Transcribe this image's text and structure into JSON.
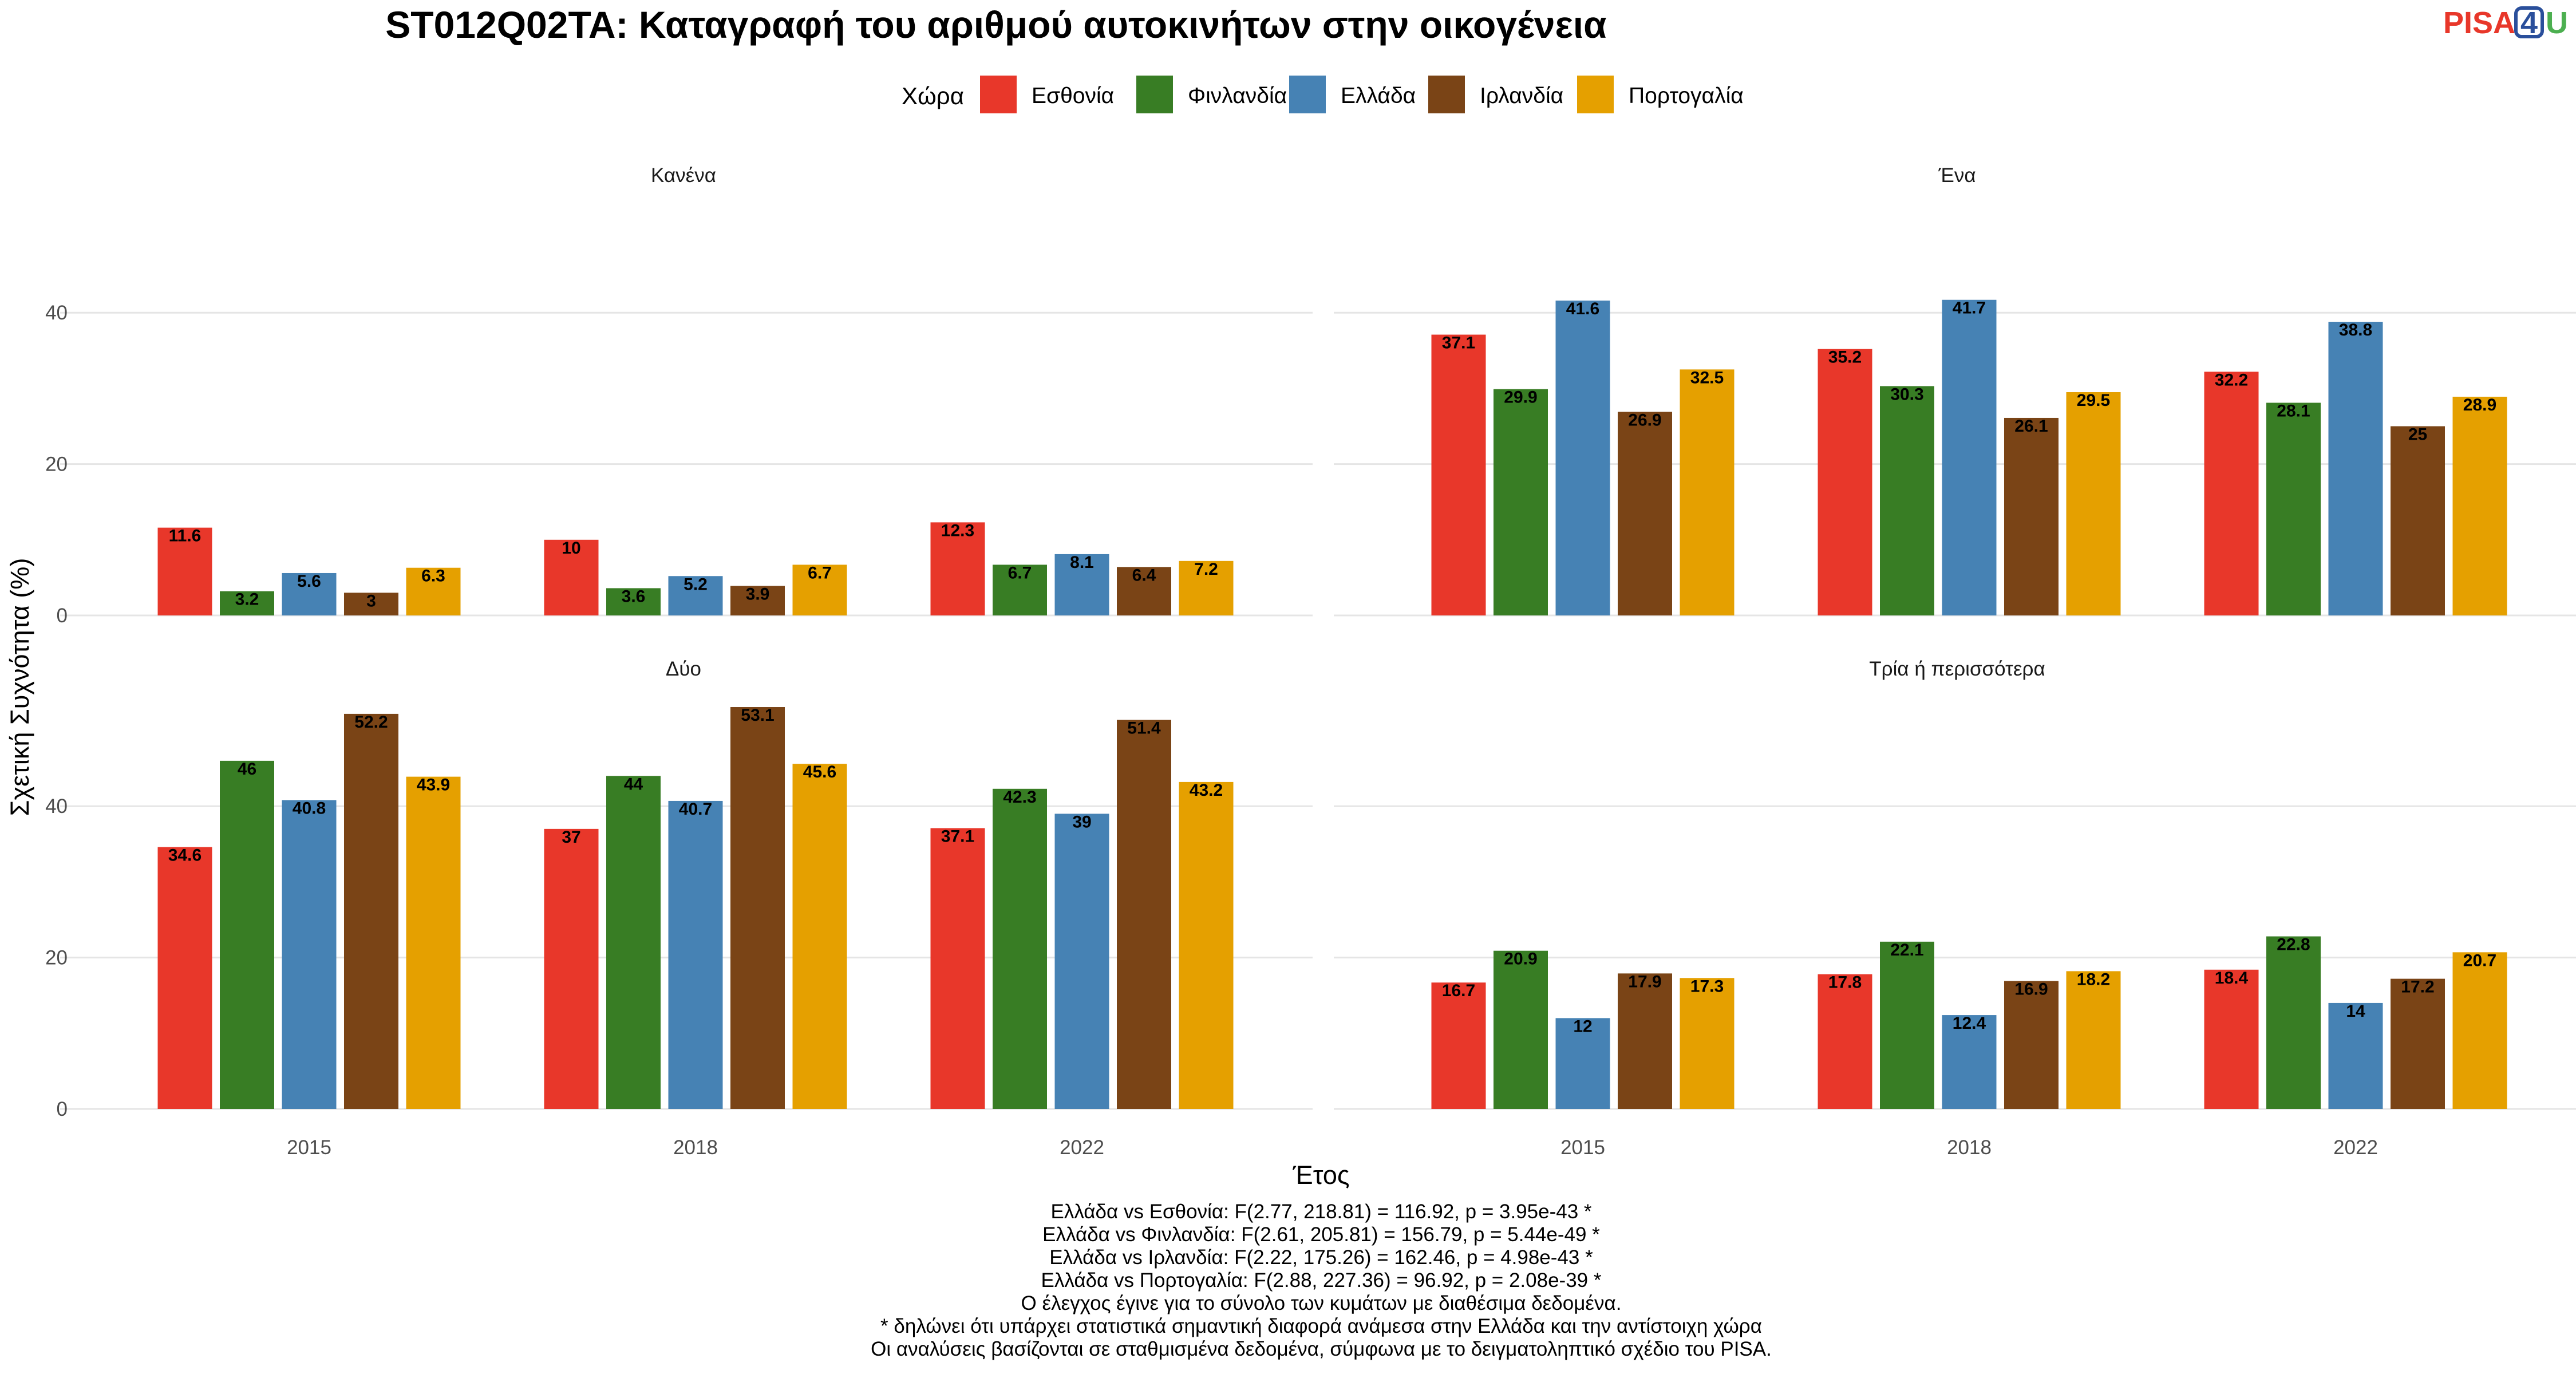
{
  "header": {
    "title": "ST012Q02TA: Καταγραφή του αριθμού αυτοκινήτων στην οικογένεια",
    "logo_left": "PISA",
    "logo_mid": "4",
    "logo_right": "U"
  },
  "legend": {
    "title": "Χώρα",
    "items": [
      {
        "label": "Εσθονία",
        "color": "#E8372A"
      },
      {
        "label": "Φινλανδία",
        "color": "#387D24"
      },
      {
        "label": "Ελλάδα",
        "color": "#4682B4"
      },
      {
        "label": "Ιρλανδία",
        "color": "#7A4416"
      },
      {
        "label": "Πορτογαλία",
        "color": "#E5A000"
      }
    ]
  },
  "colors": {
    "grid": "#e5e5e5",
    "logo_red": "#E8372A",
    "logo_blue": "#2a4f9b",
    "logo_green": "#4caf50"
  },
  "chart_data": {
    "type": "bar",
    "xlabel": "Έτος",
    "ylabel": "Σχετική Συχνότητα (%)",
    "ylim": [
      0,
      50
    ],
    "yticks": [
      0,
      20,
      40
    ],
    "categories": [
      "2015",
      "2018",
      "2022"
    ],
    "series_names": [
      "Εσθονία",
      "Φινλανδία",
      "Ελλάδα",
      "Ιρλανδία",
      "Πορτογαλία"
    ],
    "grid": true,
    "legend_position": "top",
    "facets": [
      {
        "title": "Κανένα",
        "values": [
          [
            11.6,
            3.2,
            5.6,
            3,
            6.3
          ],
          [
            10,
            3.6,
            5.2,
            3.9,
            6.7
          ],
          [
            12.3,
            6.7,
            8.1,
            6.4,
            7.2
          ]
        ]
      },
      {
        "title": "Ένα",
        "values": [
          [
            37.1,
            29.9,
            41.6,
            26.9,
            32.5
          ],
          [
            35.2,
            30.3,
            41.7,
            26.1,
            29.5
          ],
          [
            32.2,
            28.1,
            38.8,
            25,
            28.9
          ]
        ]
      },
      {
        "title": "Δύο",
        "values": [
          [
            34.6,
            46,
            40.8,
            52.2,
            43.9
          ],
          [
            37,
            44,
            40.7,
            53.1,
            45.6
          ],
          [
            37.1,
            42.3,
            39,
            51.4,
            43.2
          ]
        ]
      },
      {
        "title": "Τρία ή περισσότερα",
        "values": [
          [
            16.7,
            20.9,
            12,
            17.9,
            17.3
          ],
          [
            17.8,
            22.1,
            12.4,
            16.9,
            18.2
          ],
          [
            18.4,
            22.8,
            14,
            17.2,
            20.7
          ]
        ]
      }
    ]
  },
  "footnotes": [
    "Ελλάδα vs Εσθονία: F(2.77, 218.81) = 116.92, p = 3.95e-43 *",
    "Ελλάδα vs Φινλανδία: F(2.61, 205.81) = 156.79, p = 5.44e-49 *",
    "Ελλάδα vs Ιρλανδία: F(2.22, 175.26) = 162.46, p = 4.98e-43 *",
    "Ελλάδα vs Πορτογαλία: F(2.88, 227.36) = 96.92, p = 2.08e-39 *",
    "Ο έλεγχος έγινε για το σύνολο των κυμάτων με διαθέσιμα δεδομένα.",
    "* δηλώνει ότι υπάρχει στατιστικά σημαντική διαφορά ανάμεσα στην Ελλάδα και την αντίστοιχη χώρα",
    "Οι αναλύσεις βασίζονται σε σταθμισμένα δεδομένα, σύμφωνα με το δειγματοληπτικό σχέδιο του PISA."
  ]
}
